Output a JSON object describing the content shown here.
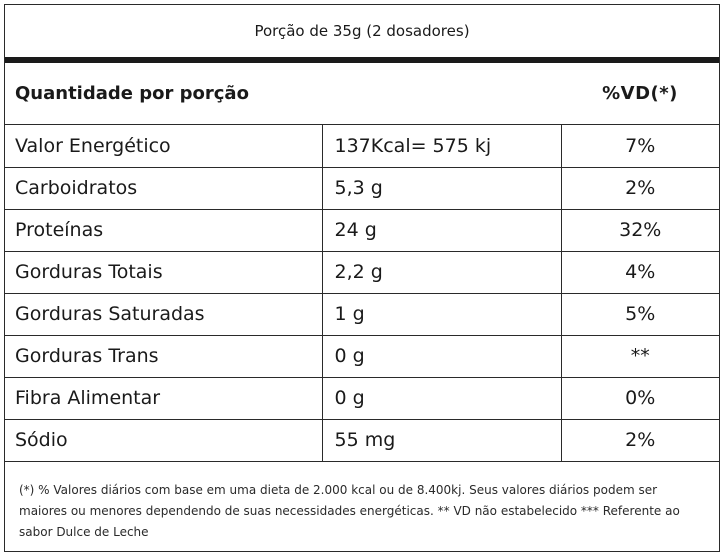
{
  "serving": "Porção de 35g (2 dosadores)",
  "header": {
    "quantity_label": "Quantidade por porção",
    "vd_label": "%VD(*)"
  },
  "rows": [
    {
      "name": "Valor Energético",
      "amount": "137Kcal= 575 kj",
      "vd": "7%"
    },
    {
      "name": "Carboidratos",
      "amount": "5,3 g",
      "vd": "2%"
    },
    {
      "name": "Proteínas",
      "amount": "24 g",
      "vd": "32%"
    },
    {
      "name": "Gorduras Totais",
      "amount": "2,2 g",
      "vd": "4%"
    },
    {
      "name": "Gorduras Saturadas",
      "amount": "1 g",
      "vd": "5%"
    },
    {
      "name": "Gorduras Trans",
      "amount": "0 g",
      "vd": "**"
    },
    {
      "name": "Fibra Alimentar",
      "amount": "0 g",
      "vd": "0%"
    },
    {
      "name": "Sódio",
      "amount": "55 mg",
      "vd": "2%"
    }
  ],
  "footnote": "(*) % Valores diários com base em uma dieta de 2.000 kcal ou de 8.400kj. Seus valores diários podem ser maiores ou menores dependendo de suas necessidades energéticas. ** VD não estabelecido *** Referente ao sabor Dulce de Leche"
}
